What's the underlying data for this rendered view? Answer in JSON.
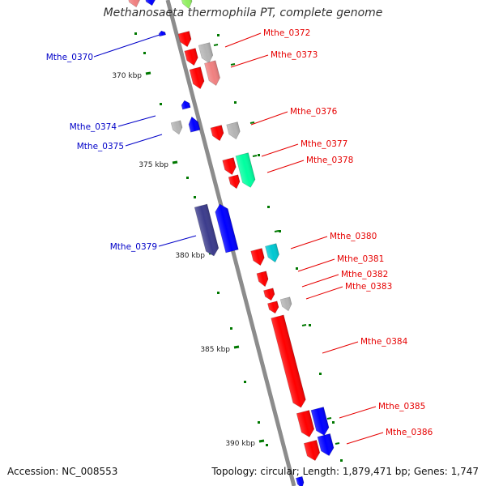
{
  "title": "Methanosaeta thermophila PT, complete genome",
  "footer": {
    "accession": "Accession: NC_008553",
    "summary": "Topology: circular; Length: 1,879,471 bp; Genes: 1,747"
  },
  "colors": {
    "red_gene": "#ff0000",
    "blue_gene": "#0000ff",
    "grey_gene": "#b4b4b4",
    "pink_gene": "#f08080",
    "teal_gene": "#00ffa0",
    "cyan_gene": "#00c8d2",
    "navy_gene": "#3c3c8c",
    "backbone": "#8c8c8c",
    "tick": "#007800",
    "label_blue": "#0000c8",
    "label_red": "#e60000"
  },
  "scale_labels": [
    "370 kbp",
    "375 kbp",
    "380 kbp",
    "385 kbp",
    "390 kbp"
  ],
  "gene_labels": [
    {
      "name": "Mthe_0370",
      "side": "left"
    },
    {
      "name": "Mthe_0372",
      "side": "right"
    },
    {
      "name": "Mthe_0373",
      "side": "right"
    },
    {
      "name": "Mthe_0374",
      "side": "left"
    },
    {
      "name": "Mthe_0375",
      "side": "left"
    },
    {
      "name": "Mthe_0376",
      "side": "right"
    },
    {
      "name": "Mthe_0377",
      "side": "right"
    },
    {
      "name": "Mthe_0378",
      "side": "right"
    },
    {
      "name": "Mthe_0379",
      "side": "left"
    },
    {
      "name": "Mthe_0380",
      "side": "right"
    },
    {
      "name": "Mthe_0381",
      "side": "right"
    },
    {
      "name": "Mthe_0382",
      "side": "right"
    },
    {
      "name": "Mthe_0383",
      "side": "right"
    },
    {
      "name": "Mthe_0384",
      "side": "right"
    },
    {
      "name": "Mthe_0385",
      "side": "right"
    },
    {
      "name": "Mthe_0386",
      "side": "right"
    }
  ]
}
